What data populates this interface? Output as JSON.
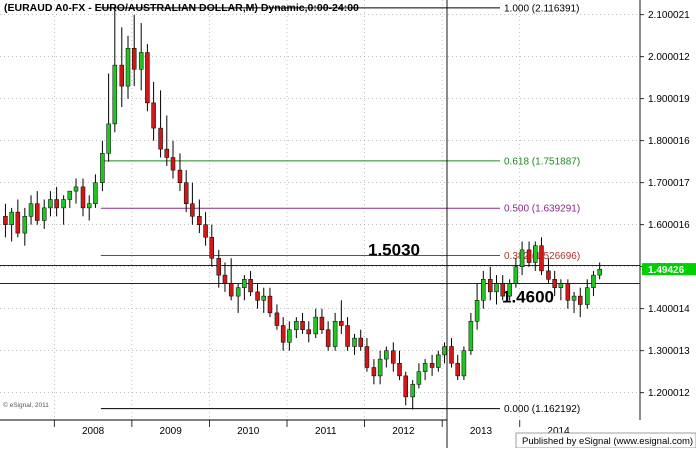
{
  "chart_data": {
    "type": "candlestick",
    "title": "(EURAUD A0-FX - EURO/AUSTRALIAN DOLLAR,M) Dynamic,0:00-24:00",
    "x_tick_labels": [
      "2008",
      "2009",
      "2010",
      "2011",
      "2012",
      "2013",
      "2014"
    ],
    "y_tick_labels": [
      "2.100021",
      "2.000012",
      "1.900019",
      "1.800016",
      "1.700017",
      "1.600016",
      "1.500014",
      "1.400014",
      "1.300013",
      "1.200012"
    ],
    "ylim": [
      1.135,
      2.135
    ],
    "xlim": [
      2007.3,
      2015.55
    ],
    "grid": true,
    "last_price": "1.49426",
    "last_price_color": "#00d000",
    "up_color": "#22c322",
    "down_color": "#d01818",
    "fib_levels": [
      {
        "label": "1.000 (2.116391)",
        "value": 2.116391,
        "color": "#000000"
      },
      {
        "label": "0.618 (1.751887)",
        "value": 1.751887,
        "color": "#1e8a1e"
      },
      {
        "label": "0.500 (1.639291)",
        "value": 1.639291,
        "color": "#8a2a8a"
      },
      {
        "label": "0.382 (1.526696)",
        "value": 1.526696,
        "color": "#b03030"
      },
      {
        "label": "0.000 (1.162192)",
        "value": 1.162192,
        "color": "#000000"
      }
    ],
    "horizontal_lines": [
      {
        "label": "1.5030",
        "value": 1.503,
        "color": "#1010c0"
      },
      {
        "label": "1.4600",
        "value": 1.46,
        "color": "#1010c0"
      }
    ],
    "candles": [
      {
        "t": 2007.37,
        "o": 1.62,
        "h": 1.65,
        "l": 1.57,
        "c": 1.6
      },
      {
        "t": 2007.45,
        "o": 1.6,
        "h": 1.64,
        "l": 1.56,
        "c": 1.63
      },
      {
        "t": 2007.53,
        "o": 1.63,
        "h": 1.66,
        "l": 1.57,
        "c": 1.58
      },
      {
        "t": 2007.62,
        "o": 1.58,
        "h": 1.64,
        "l": 1.55,
        "c": 1.62
      },
      {
        "t": 2007.7,
        "o": 1.62,
        "h": 1.67,
        "l": 1.6,
        "c": 1.65
      },
      {
        "t": 2007.78,
        "o": 1.65,
        "h": 1.68,
        "l": 1.6,
        "c": 1.61
      },
      {
        "t": 2007.87,
        "o": 1.61,
        "h": 1.66,
        "l": 1.59,
        "c": 1.64
      },
      {
        "t": 2007.95,
        "o": 1.64,
        "h": 1.68,
        "l": 1.62,
        "c": 1.66
      },
      {
        "t": 2008.03,
        "o": 1.66,
        "h": 1.69,
        "l": 1.62,
        "c": 1.64
      },
      {
        "t": 2008.12,
        "o": 1.64,
        "h": 1.67,
        "l": 1.6,
        "c": 1.66
      },
      {
        "t": 2008.2,
        "o": 1.66,
        "h": 1.68,
        "l": 1.64,
        "c": 1.68
      },
      {
        "t": 2008.28,
        "o": 1.68,
        "h": 1.71,
        "l": 1.65,
        "c": 1.69
      },
      {
        "t": 2008.37,
        "o": 1.69,
        "h": 1.71,
        "l": 1.62,
        "c": 1.64
      },
      {
        "t": 2008.45,
        "o": 1.64,
        "h": 1.67,
        "l": 1.61,
        "c": 1.65
      },
      {
        "t": 2008.53,
        "o": 1.65,
        "h": 1.72,
        "l": 1.64,
        "c": 1.7
      },
      {
        "t": 2008.62,
        "o": 1.7,
        "h": 1.8,
        "l": 1.68,
        "c": 1.77
      },
      {
        "t": 2008.7,
        "o": 1.77,
        "h": 1.96,
        "l": 1.75,
        "c": 1.84
      },
      {
        "t": 2008.78,
        "o": 1.84,
        "h": 2.12,
        "l": 1.82,
        "c": 1.98
      },
      {
        "t": 2008.87,
        "o": 1.98,
        "h": 2.07,
        "l": 1.88,
        "c": 1.93
      },
      {
        "t": 2008.95,
        "o": 1.93,
        "h": 2.05,
        "l": 1.9,
        "c": 2.02
      },
      {
        "t": 2009.03,
        "o": 2.02,
        "h": 2.1,
        "l": 1.93,
        "c": 1.97
      },
      {
        "t": 2009.12,
        "o": 1.97,
        "h": 2.08,
        "l": 1.92,
        "c": 2.01
      },
      {
        "t": 2009.2,
        "o": 2.01,
        "h": 2.03,
        "l": 1.87,
        "c": 1.89
      },
      {
        "t": 2009.28,
        "o": 1.89,
        "h": 1.94,
        "l": 1.8,
        "c": 1.83
      },
      {
        "t": 2009.37,
        "o": 1.83,
        "h": 1.92,
        "l": 1.76,
        "c": 1.78
      },
      {
        "t": 2009.45,
        "o": 1.78,
        "h": 1.86,
        "l": 1.74,
        "c": 1.76
      },
      {
        "t": 2009.53,
        "o": 1.76,
        "h": 1.8,
        "l": 1.71,
        "c": 1.73
      },
      {
        "t": 2009.62,
        "o": 1.73,
        "h": 1.77,
        "l": 1.68,
        "c": 1.7
      },
      {
        "t": 2009.7,
        "o": 1.7,
        "h": 1.73,
        "l": 1.63,
        "c": 1.65
      },
      {
        "t": 2009.78,
        "o": 1.65,
        "h": 1.7,
        "l": 1.6,
        "c": 1.62
      },
      {
        "t": 2009.87,
        "o": 1.62,
        "h": 1.66,
        "l": 1.58,
        "c": 1.6
      },
      {
        "t": 2009.95,
        "o": 1.6,
        "h": 1.63,
        "l": 1.55,
        "c": 1.57
      },
      {
        "t": 2010.03,
        "o": 1.57,
        "h": 1.6,
        "l": 1.5,
        "c": 1.52
      },
      {
        "t": 2010.12,
        "o": 1.52,
        "h": 1.54,
        "l": 1.45,
        "c": 1.48
      },
      {
        "t": 2010.2,
        "o": 1.48,
        "h": 1.51,
        "l": 1.44,
        "c": 1.46
      },
      {
        "t": 2010.28,
        "o": 1.46,
        "h": 1.52,
        "l": 1.42,
        "c": 1.43
      },
      {
        "t": 2010.37,
        "o": 1.43,
        "h": 1.46,
        "l": 1.39,
        "c": 1.45
      },
      {
        "t": 2010.45,
        "o": 1.45,
        "h": 1.48,
        "l": 1.42,
        "c": 1.47
      },
      {
        "t": 2010.53,
        "o": 1.47,
        "h": 1.49,
        "l": 1.43,
        "c": 1.44
      },
      {
        "t": 2010.62,
        "o": 1.44,
        "h": 1.46,
        "l": 1.4,
        "c": 1.42
      },
      {
        "t": 2010.7,
        "o": 1.42,
        "h": 1.45,
        "l": 1.39,
        "c": 1.43
      },
      {
        "t": 2010.78,
        "o": 1.43,
        "h": 1.45,
        "l": 1.38,
        "c": 1.39
      },
      {
        "t": 2010.87,
        "o": 1.39,
        "h": 1.41,
        "l": 1.35,
        "c": 1.36
      },
      {
        "t": 2010.95,
        "o": 1.36,
        "h": 1.38,
        "l": 1.3,
        "c": 1.32
      },
      {
        "t": 2011.03,
        "o": 1.32,
        "h": 1.37,
        "l": 1.3,
        "c": 1.35
      },
      {
        "t": 2011.12,
        "o": 1.35,
        "h": 1.38,
        "l": 1.33,
        "c": 1.37
      },
      {
        "t": 2011.2,
        "o": 1.37,
        "h": 1.39,
        "l": 1.34,
        "c": 1.35
      },
      {
        "t": 2011.28,
        "o": 1.35,
        "h": 1.37,
        "l": 1.32,
        "c": 1.34
      },
      {
        "t": 2011.37,
        "o": 1.34,
        "h": 1.4,
        "l": 1.33,
        "c": 1.38
      },
      {
        "t": 2011.45,
        "o": 1.38,
        "h": 1.4,
        "l": 1.34,
        "c": 1.35
      },
      {
        "t": 2011.53,
        "o": 1.35,
        "h": 1.37,
        "l": 1.3,
        "c": 1.31
      },
      {
        "t": 2011.62,
        "o": 1.31,
        "h": 1.39,
        "l": 1.3,
        "c": 1.37
      },
      {
        "t": 2011.7,
        "o": 1.37,
        "h": 1.42,
        "l": 1.34,
        "c": 1.36
      },
      {
        "t": 2011.78,
        "o": 1.36,
        "h": 1.38,
        "l": 1.3,
        "c": 1.31
      },
      {
        "t": 2011.87,
        "o": 1.31,
        "h": 1.34,
        "l": 1.29,
        "c": 1.33
      },
      {
        "t": 2011.95,
        "o": 1.33,
        "h": 1.35,
        "l": 1.3,
        "c": 1.31
      },
      {
        "t": 2012.03,
        "o": 1.31,
        "h": 1.33,
        "l": 1.25,
        "c": 1.26
      },
      {
        "t": 2012.12,
        "o": 1.26,
        "h": 1.28,
        "l": 1.22,
        "c": 1.24
      },
      {
        "t": 2012.2,
        "o": 1.24,
        "h": 1.3,
        "l": 1.22,
        "c": 1.28
      },
      {
        "t": 2012.28,
        "o": 1.28,
        "h": 1.31,
        "l": 1.26,
        "c": 1.3
      },
      {
        "t": 2012.37,
        "o": 1.3,
        "h": 1.32,
        "l": 1.25,
        "c": 1.27
      },
      {
        "t": 2012.45,
        "o": 1.27,
        "h": 1.3,
        "l": 1.23,
        "c": 1.24
      },
      {
        "t": 2012.53,
        "o": 1.24,
        "h": 1.25,
        "l": 1.17,
        "c": 1.19
      },
      {
        "t": 2012.62,
        "o": 1.19,
        "h": 1.23,
        "l": 1.16,
        "c": 1.22
      },
      {
        "t": 2012.7,
        "o": 1.22,
        "h": 1.27,
        "l": 1.21,
        "c": 1.25
      },
      {
        "t": 2012.78,
        "o": 1.25,
        "h": 1.28,
        "l": 1.23,
        "c": 1.27
      },
      {
        "t": 2012.87,
        "o": 1.27,
        "h": 1.29,
        "l": 1.24,
        "c": 1.26
      },
      {
        "t": 2012.95,
        "o": 1.26,
        "h": 1.3,
        "l": 1.25,
        "c": 1.29
      },
      {
        "t": 2013.03,
        "o": 1.29,
        "h": 1.32,
        "l": 1.27,
        "c": 1.31
      },
      {
        "t": 2013.12,
        "o": 1.31,
        "h": 1.33,
        "l": 1.26,
        "c": 1.27
      },
      {
        "t": 2013.2,
        "o": 1.27,
        "h": 1.29,
        "l": 1.23,
        "c": 1.24
      },
      {
        "t": 2013.28,
        "o": 1.24,
        "h": 1.31,
        "l": 1.23,
        "c": 1.3
      },
      {
        "t": 2013.37,
        "o": 1.3,
        "h": 1.39,
        "l": 1.29,
        "c": 1.37
      },
      {
        "t": 2013.45,
        "o": 1.37,
        "h": 1.46,
        "l": 1.35,
        "c": 1.42
      },
      {
        "t": 2013.53,
        "o": 1.42,
        "h": 1.49,
        "l": 1.4,
        "c": 1.47
      },
      {
        "t": 2013.62,
        "o": 1.47,
        "h": 1.5,
        "l": 1.42,
        "c": 1.44
      },
      {
        "t": 2013.7,
        "o": 1.44,
        "h": 1.48,
        "l": 1.41,
        "c": 1.46
      },
      {
        "t": 2013.78,
        "o": 1.46,
        "h": 1.48,
        "l": 1.42,
        "c": 1.43
      },
      {
        "t": 2013.87,
        "o": 1.43,
        "h": 1.47,
        "l": 1.42,
        "c": 1.46
      },
      {
        "t": 2013.95,
        "o": 1.46,
        "h": 1.52,
        "l": 1.45,
        "c": 1.5
      },
      {
        "t": 2014.03,
        "o": 1.5,
        "h": 1.56,
        "l": 1.48,
        "c": 1.54
      },
      {
        "t": 2014.12,
        "o": 1.54,
        "h": 1.56,
        "l": 1.5,
        "c": 1.51
      },
      {
        "t": 2014.2,
        "o": 1.51,
        "h": 1.56,
        "l": 1.49,
        "c": 1.55
      },
      {
        "t": 2014.28,
        "o": 1.55,
        "h": 1.57,
        "l": 1.48,
        "c": 1.49
      },
      {
        "t": 2014.37,
        "o": 1.49,
        "h": 1.52,
        "l": 1.46,
        "c": 1.47
      },
      {
        "t": 2014.45,
        "o": 1.47,
        "h": 1.49,
        "l": 1.43,
        "c": 1.45
      },
      {
        "t": 2014.53,
        "o": 1.45,
        "h": 1.47,
        "l": 1.42,
        "c": 1.46
      },
      {
        "t": 2014.62,
        "o": 1.46,
        "h": 1.47,
        "l": 1.4,
        "c": 1.42
      },
      {
        "t": 2014.7,
        "o": 1.42,
        "h": 1.44,
        "l": 1.39,
        "c": 1.43
      },
      {
        "t": 2014.78,
        "o": 1.43,
        "h": 1.45,
        "l": 1.38,
        "c": 1.41
      },
      {
        "t": 2014.87,
        "o": 1.41,
        "h": 1.47,
        "l": 1.4,
        "c": 1.45
      },
      {
        "t": 2014.95,
        "o": 1.45,
        "h": 1.49,
        "l": 1.43,
        "c": 1.48
      },
      {
        "t": 2015.03,
        "o": 1.48,
        "h": 1.51,
        "l": 1.47,
        "c": 1.494
      }
    ]
  },
  "watermark": "© eSignal, 2011",
  "footer": {
    "publisher": "Published by eSignal (www.esignal.com)"
  }
}
